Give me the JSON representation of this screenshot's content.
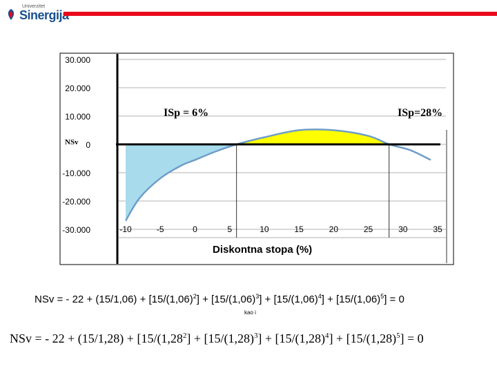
{
  "header": {
    "logo_small": "Univerzitet",
    "logo_main": "Sinergija",
    "bar_color": "#e8091c"
  },
  "chart_data": {
    "type": "area",
    "xlabel": "Diskontna stopa (%)",
    "ylabel": "NSv",
    "x_ticks": [
      "-10",
      "-5",
      "0",
      "5",
      "10",
      "15",
      "20",
      "25",
      "30",
      "35"
    ],
    "y_ticks": [
      "30.000",
      "20.000",
      "10.000",
      "0",
      "-10.000",
      "-20.000",
      "-30.000"
    ],
    "xlim": [
      -10,
      35
    ],
    "ylim": [
      -30000,
      30000
    ],
    "grid": true,
    "series": [
      {
        "x": [
          -10,
          -8,
          -5,
          -2,
          0,
          3,
          6,
          10,
          15,
          20,
          25,
          28,
          31,
          34
        ],
        "y": [
          -27000,
          -19000,
          -12000,
          -7500,
          -5500,
          -2500,
          0,
          2500,
          5000,
          5000,
          3000,
          0,
          -2000,
          -5500
        ]
      }
    ],
    "annotations": [
      {
        "text": "ISp = 6%",
        "x": 6
      },
      {
        "text": "ISp=28%",
        "x": 28
      }
    ],
    "fill_colors": {
      "negative": "#a8dcec",
      "positive": "#ffff00"
    },
    "line_color": "#6e9dc8"
  },
  "formulas": {
    "f1": "NSv = - 22 + (15/1,06) + [15/(1,06)2] + [15/(1,06)3] + [15/(1,06)4] + [15/(1,06)5] = 0",
    "kao_i": "kao i",
    "f2": "NSv = - 22 + (15/1,28) + [15/(1,282] + [15/(1,28)3] + [15/(1,28)4] + [15/(1,28)5] = 0"
  }
}
